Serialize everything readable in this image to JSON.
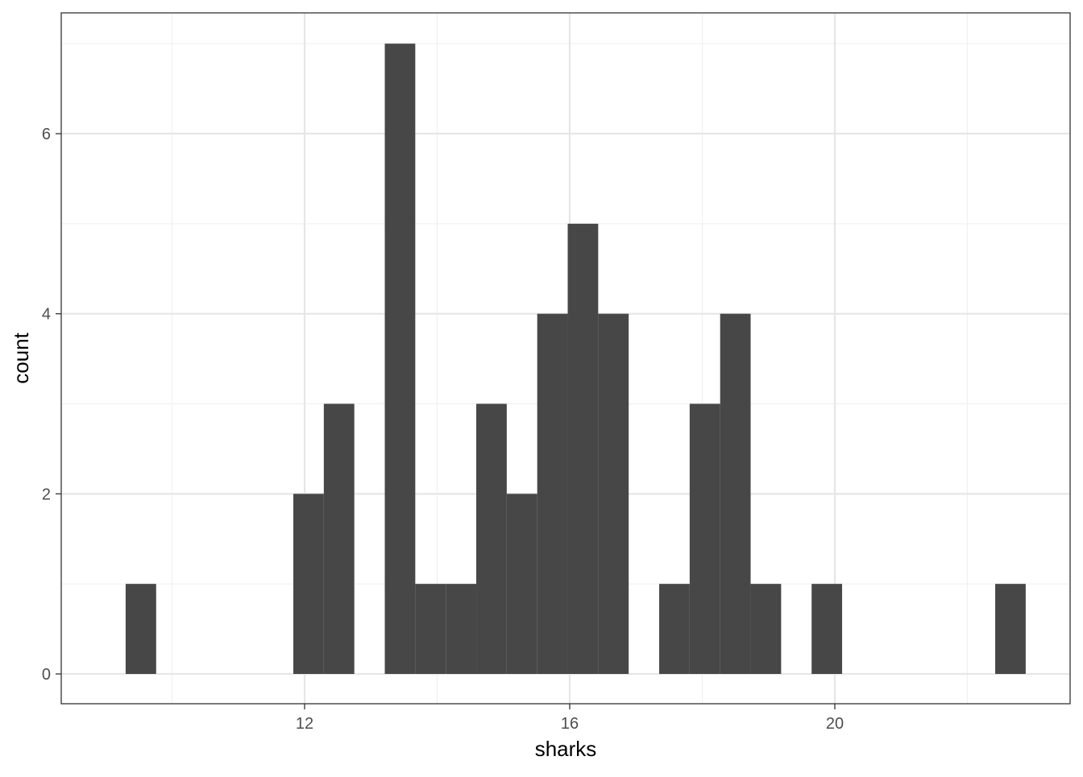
{
  "chart_data": {
    "type": "bar",
    "subtype": "histogram",
    "title": "",
    "xlabel": "sharks",
    "ylabel": "count",
    "xlim": [
      8.8,
      23.3
    ],
    "ylim": [
      -0.33,
      7.35
    ],
    "x_ticks": [
      12,
      16,
      20
    ],
    "y_ticks": [
      0,
      2,
      4,
      6
    ],
    "x_minor_gridlines": [
      10,
      14,
      18,
      22
    ],
    "y_minor_gridlines": [
      1,
      3,
      5,
      7
    ],
    "grid": true,
    "legend": "none",
    "bar_color": "#474747",
    "bins": [
      {
        "x0": 9.3,
        "x1": 9.76,
        "count": 1
      },
      {
        "x0": 11.83,
        "x1": 12.29,
        "count": 2
      },
      {
        "x0": 12.29,
        "x1": 12.75,
        "count": 3
      },
      {
        "x0": 13.21,
        "x1": 13.67,
        "count": 7
      },
      {
        "x0": 13.67,
        "x1": 14.13,
        "count": 1
      },
      {
        "x0": 14.13,
        "x1": 14.59,
        "count": 1
      },
      {
        "x0": 14.59,
        "x1": 15.05,
        "count": 3
      },
      {
        "x0": 15.05,
        "x1": 15.51,
        "count": 2
      },
      {
        "x0": 15.51,
        "x1": 15.97,
        "count": 4
      },
      {
        "x0": 15.97,
        "x1": 16.43,
        "count": 5
      },
      {
        "x0": 16.43,
        "x1": 16.89,
        "count": 4
      },
      {
        "x0": 17.35,
        "x1": 17.81,
        "count": 1
      },
      {
        "x0": 17.81,
        "x1": 18.27,
        "count": 3
      },
      {
        "x0": 18.27,
        "x1": 18.73,
        "count": 4
      },
      {
        "x0": 18.73,
        "x1": 19.19,
        "count": 1
      },
      {
        "x0": 19.65,
        "x1": 20.11,
        "count": 1
      },
      {
        "x0": 22.42,
        "x1": 22.88,
        "count": 1
      }
    ]
  },
  "colors": {
    "panel_border": "#333333",
    "major_grid": "#e6e6e6",
    "minor_grid": "#f0f0f0",
    "tick_text": "#4d4d4d",
    "axis_title": "#000000"
  }
}
